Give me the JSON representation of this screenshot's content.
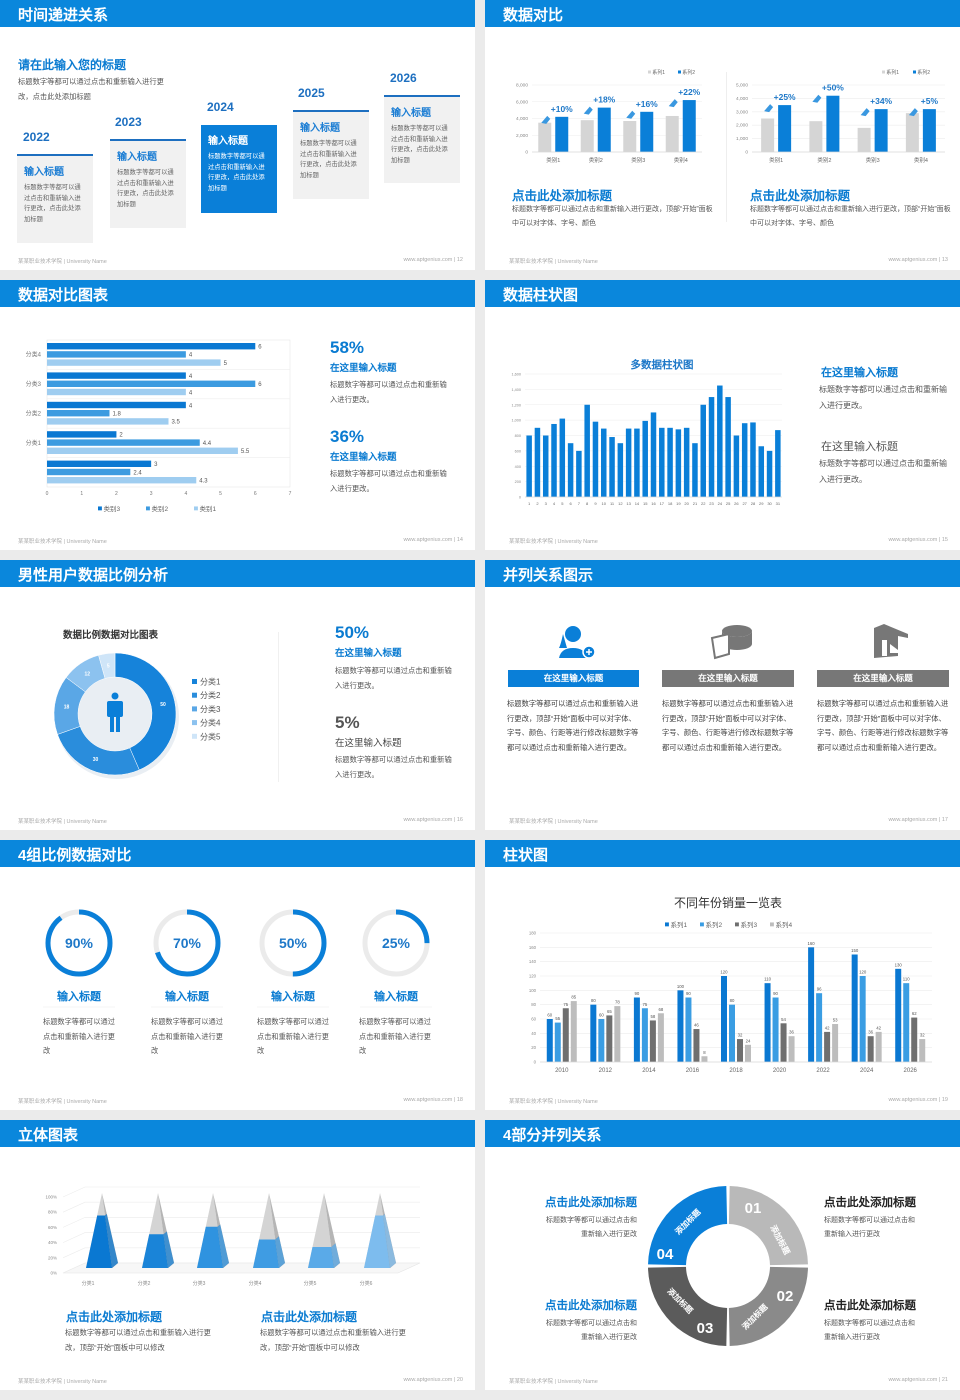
{
  "footer": {
    "school": "某某职业技术学院 | University Name",
    "site": "www.aptgenius.com"
  },
  "slides": [
    {
      "title": "时间递进关系",
      "page": "12",
      "heading": "请在此输入您的标题",
      "desc": "标题数字等都可以通过点击和重新输入进行更改，点击此处添加标题",
      "cards": [
        {
          "year": "2022",
          "title": "输入标题",
          "body": "标题数字等都可以通过点击和重新输入进行更改，点击此处添加标题"
        },
        {
          "year": "2023",
          "title": "输入标题",
          "body": "标题数字等都可以通过点击和重新输入进行更改，点击此处添加标题"
        },
        {
          "year": "2024",
          "title": "输入标题",
          "body": "标题数字等都可以通过点击和重新输入进行更改，点击此处添加标题"
        },
        {
          "year": "2025",
          "title": "输入标题",
          "body": "标题数字等都可以通过点击和重新输入进行更改，点击此处添加标题"
        },
        {
          "year": "2026",
          "title": "输入标题",
          "body": "标题数字等都可以通过点击和重新输入进行更改，点击此处添加标题"
        }
      ]
    },
    {
      "title": "数据对比",
      "page": "13",
      "blocks": [
        {
          "title": "点击此处添加标题",
          "body": "标题数字等都可以通过点击和重新输入进行更改，顶部“开始”面板中可以对字体、字号、颜色"
        },
        {
          "title": "点击此处添加标题",
          "body": "标题数字等都可以通过点击和重新输入进行更改，顶部“开始”面板中可以对字体、字号、颜色"
        }
      ]
    },
    {
      "title": "数据对比图表",
      "page": "14",
      "stats": [
        {
          "value": "58%",
          "title": "在这里输入标题",
          "body": "标题数字等都可以通过点击和重新输入进行更改。"
        },
        {
          "value": "36%",
          "title": "在这里输入标题",
          "body": "标题数字等都可以通过点击和重新输入进行更改。"
        }
      ]
    },
    {
      "title": "数据柱状图",
      "page": "15",
      "blocks": [
        {
          "title": "在这里输入标题",
          "body": "标题数字等都可以通过点击和重新输入进行更改。"
        },
        {
          "title": "在这里输入标题",
          "body": "标题数字等都可以通过点击和重新输入进行更改。"
        }
      ]
    },
    {
      "title": "男性用户数据比例分析",
      "page": "16",
      "chart_title": "数据比例数据对比图表",
      "stats": [
        {
          "value": "50%",
          "title": "在这里输入标题",
          "body": "标题数字等都可以通过点击和重新输入进行更改。"
        },
        {
          "value": "5%",
          "title": "在这里输入标题",
          "body": "标题数字等都可以通过点击和重新输入进行更改。"
        }
      ]
    },
    {
      "title": "并列关系图示",
      "page": "17",
      "items": [
        {
          "icon": "user-add-icon",
          "label": "在这里输入标题",
          "body": "标题数字等都可以通过点击和重新输入进行更改，顶部“开始”面板中可以对字体、字号、颜色、行距等进行修改标题数字等都可以通过点击和重新输入进行更改。"
        },
        {
          "icon": "pie-chart-icon",
          "label": "在这里输入标题",
          "body": "标题数字等都可以通过点击和重新输入进行更改，顶部“开始”面板中可以对字体、字号、颜色、行距等进行修改标题数字等都可以通过点击和重新输入进行更改。"
        },
        {
          "icon": "building-icon",
          "label": "在这里输入标题",
          "body": "标题数字等都可以通过点击和重新输入进行更改，顶部“开始”面板中可以对字体、字号、颜色、行距等进行修改标题数字等都可以通过点击和重新输入进行更改。"
        }
      ]
    },
    {
      "title": "4组比例数据对比",
      "page": "18",
      "rings": [
        {
          "value": 90,
          "label": "90%",
          "title": "输入标题",
          "body": "标题数字等都可以通过点击和重新输入进行更改"
        },
        {
          "value": 70,
          "label": "70%",
          "title": "输入标题",
          "body": "标题数字等都可以通过点击和重新输入进行更改"
        },
        {
          "value": 50,
          "label": "50%",
          "title": "输入标题",
          "body": "标题数字等都可以通过点击和重新输入进行更改"
        },
        {
          "value": 25,
          "label": "25%",
          "title": "输入标题",
          "body": "标题数字等都可以通过点击和重新输入进行更改"
        }
      ]
    },
    {
      "title": "柱状图",
      "page": "19"
    },
    {
      "title": "立体图表",
      "page": "20",
      "blocks": [
        {
          "title": "点击此处添加标题",
          "body": "标题数字等都可以通过点击和重新输入进行更改，顶部“开始”面板中可以修改"
        },
        {
          "title": "点击此处添加标题",
          "body": "标题数字等都可以通过点击和重新输入进行更改，顶部“开始”面板中可以修改"
        }
      ]
    },
    {
      "title": "4部分并列关系",
      "page": "21",
      "segments": [
        {
          "num": "01",
          "label": "添加标题"
        },
        {
          "num": "02",
          "label": "添加标题"
        },
        {
          "num": "03",
          "label": "添加标题"
        },
        {
          "num": "04",
          "label": "添加标题"
        }
      ],
      "blocks": [
        {
          "title": "点击此处添加标题",
          "body1": "标题数字等都可以通过点击和",
          "body2": "重新输入进行更改"
        },
        {
          "title": "点击此处添加标题",
          "body1": "标题数字等都可以通过点击和",
          "body2": "重新输入进行更改"
        },
        {
          "title": "点击此处添加标题",
          "body1": "标题数字等都可以通过点击和",
          "body2": "重新输入进行更改"
        },
        {
          "title": "点击此处添加标题",
          "body1": "标题数字等都可以通过点击和",
          "body2": "重新输入进行更改"
        }
      ]
    }
  ],
  "colors": {
    "brand": "#0a87dc",
    "blue": "#0a7bd1",
    "gray": "#777777"
  },
  "chart_data": [
    {
      "type": "bar",
      "categories": [
        "类别1",
        "类别2",
        "类别3",
        "类别4"
      ],
      "ylim": [
        0,
        8000
      ],
      "yticks": [
        0,
        2000,
        4000,
        6000,
        8000
      ],
      "legend": "top-right",
      "series": [
        {
          "name": "系列1",
          "values": [
            3500,
            3800,
            3700,
            4300
          ],
          "color": "#d5d5d5"
        },
        {
          "name": "系列2",
          "values": [
            4200,
            5300,
            4800,
            6200
          ],
          "color": "#0a7fd8"
        }
      ],
      "annotations": [
        "+10%",
        "+18%",
        "+16%",
        "+22%"
      ]
    },
    {
      "type": "bar",
      "categories": [
        "类别1",
        "类别2",
        "类别3",
        "类别4"
      ],
      "ylim": [
        0,
        5000
      ],
      "yticks": [
        0,
        1000,
        2000,
        3000,
        4000,
        5000
      ],
      "legend": "top-right",
      "series": [
        {
          "name": "系列1",
          "values": [
            2500,
            2300,
            1800,
            2900
          ],
          "color": "#d5d5d5"
        },
        {
          "name": "系列2",
          "values": [
            3500,
            4200,
            3200,
            3200
          ],
          "color": "#0a7fd8"
        }
      ],
      "annotations": [
        "+25%",
        "+50%",
        "+34%",
        "+5%"
      ]
    },
    {
      "type": "bar",
      "orientation": "horizontal",
      "categories": [
        "分类4",
        "分类3",
        "分类2",
        "分类1",
        ""
      ],
      "xlim": [
        0,
        7
      ],
      "xticks": [
        0,
        1,
        2,
        3,
        4,
        5,
        6,
        7
      ],
      "legend": "bottom",
      "series": [
        {
          "name": "类别3",
          "values": [
            6,
            4,
            4,
            2,
            3
          ],
          "color": "#0a78d2"
        },
        {
          "name": "类别2",
          "values": [
            4,
            6,
            1.8,
            4.4,
            2.4
          ],
          "color": "#3c9be0"
        },
        {
          "name": "类别1",
          "values": [
            5,
            4,
            3.5,
            5.5,
            4.3
          ],
          "color": "#9fcdf0"
        }
      ]
    },
    {
      "type": "bar",
      "title": "多数据柱状图",
      "categories": [
        "1",
        "2",
        "3",
        "4",
        "5",
        "6",
        "7",
        "8",
        "9",
        "10",
        "11",
        "12",
        "13",
        "14",
        "15",
        "16",
        "17",
        "18",
        "19",
        "20",
        "21",
        "22",
        "23",
        "24",
        "25",
        "26",
        "27",
        "28",
        "29",
        "30",
        "31"
      ],
      "ylim": [
        0,
        1600
      ],
      "yticks": [
        0,
        200,
        400,
        600,
        800,
        1000,
        1200,
        1400,
        1600
      ],
      "series": [
        {
          "values": [
            800,
            900,
            800,
            950,
            1020,
            700,
            600,
            1200,
            980,
            890,
            780,
            700,
            890,
            890,
            990,
            1100,
            900,
            900,
            880,
            900,
            700,
            1200,
            1300,
            1450,
            1300,
            800,
            960,
            970,
            660,
            600,
            870
          ],
          "color": "#0a7fd8"
        }
      ]
    },
    {
      "type": "pie",
      "donut": true,
      "title": "数据比例数据对比图表",
      "categories": [
        "分类1",
        "分类2",
        "分类3",
        "分类4",
        "分类5"
      ],
      "values": [
        50,
        30,
        18,
        12,
        5
      ],
      "colors": [
        "#1683da",
        "#2a8ddc",
        "#5aa7e6",
        "#8cc2ef",
        "#cfe5f8"
      ],
      "legend": "right"
    },
    {
      "type": "bar",
      "title": "不同年份销量一览表",
      "categories": [
        "2010",
        "2012",
        "2014",
        "2016",
        "2018",
        "2020",
        "2022",
        "2024",
        "2026"
      ],
      "ylim": [
        0,
        180
      ],
      "yticks": [
        0,
        20,
        40,
        60,
        80,
        100,
        120,
        140,
        160,
        180
      ],
      "legend": "top",
      "series": [
        {
          "name": "系列1",
          "values": [
            60,
            80,
            90,
            100,
            120,
            110,
            160,
            150,
            130
          ],
          "color": "#0a78d2"
        },
        {
          "name": "系列2",
          "values": [
            55,
            60,
            75,
            90,
            80,
            90,
            96,
            120,
            110
          ],
          "color": "#3a9de3"
        },
        {
          "name": "系列3",
          "values": [
            75,
            65,
            58,
            46,
            32,
            54,
            42,
            36,
            62
          ],
          "color": "#6f6f6f"
        },
        {
          "name": "系列4",
          "values": [
            85,
            78,
            68,
            8,
            24,
            36,
            53,
            42,
            32
          ],
          "color": "#bdbdbd"
        }
      ]
    },
    {
      "type": "bar",
      "subtype": "3d-pyramid",
      "categories": [
        "分类1",
        "分类2",
        "分类3",
        "分类4",
        "分类5",
        "分类6"
      ],
      "ylim": [
        0,
        100
      ],
      "yticks": [
        "0%",
        "20%",
        "40%",
        "60%",
        "80%",
        "100%"
      ],
      "values": [
        70,
        45,
        55,
        38,
        28,
        70
      ],
      "colors": [
        "#0a78d2",
        "#1a84d8",
        "#2f93e0",
        "#3f9ce3",
        "#5aaae8",
        "#7dbcee"
      ]
    }
  ]
}
